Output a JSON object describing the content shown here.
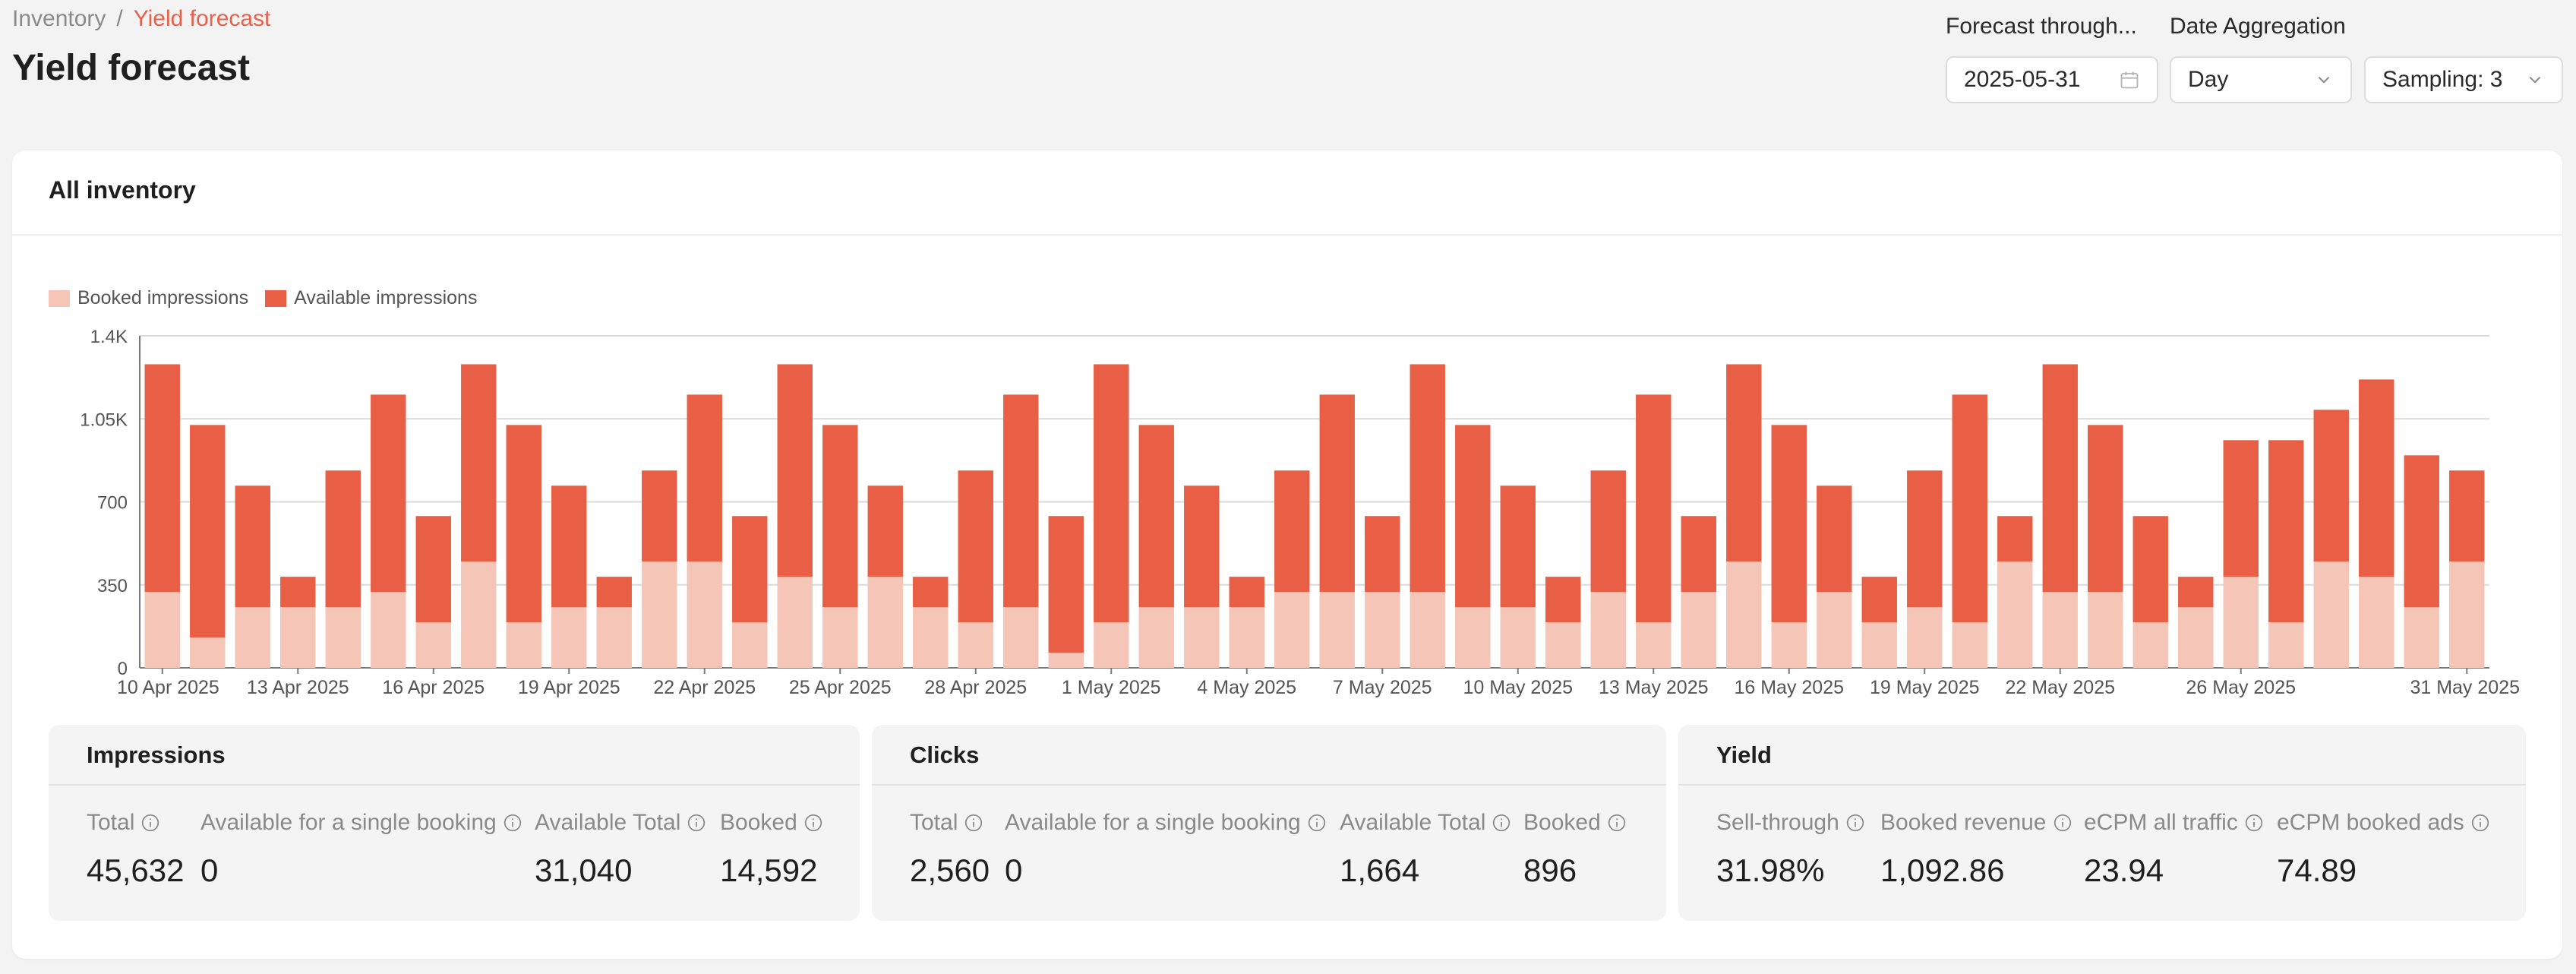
{
  "breadcrumb": {
    "parent": "Inventory",
    "separator": "/",
    "current": "Yield forecast"
  },
  "page_title": "Yield forecast",
  "controls": {
    "forecast_label": "Forecast through...",
    "forecast_value": "2025-05-31",
    "aggregation_label": "Date Aggregation",
    "aggregation_value": "Day",
    "sampling_value": "Sampling: 3"
  },
  "card": {
    "title": "All inventory"
  },
  "legend": {
    "booked": "Booked impressions",
    "available": "Available impressions"
  },
  "colors": {
    "booked": "#f5c6b7",
    "available": "#e95f45",
    "accent": "#e8604a"
  },
  "chart_data": {
    "type": "bar",
    "stacked": true,
    "ylim": [
      0,
      1400
    ],
    "yticks": [
      "0",
      "350",
      "700",
      "1.05K",
      "1.4K"
    ],
    "xticks": [
      "10 Apr 2025",
      "13 Apr 2025",
      "16 Apr 2025",
      "19 Apr 2025",
      "22 Apr 2025",
      "25 Apr 2025",
      "28 Apr 2025",
      "1 May 2025",
      "4 May 2025",
      "7 May 2025",
      "10 May 2025",
      "13 May 2025",
      "16 May 2025",
      "19 May 2025",
      "22 May 2025",
      "26 May 2025",
      "31 May 2025"
    ],
    "categories": [
      "10 Apr 2025",
      "11 Apr 2025",
      "12 Apr 2025",
      "13 Apr 2025",
      "14 Apr 2025",
      "15 Apr 2025",
      "16 Apr 2025",
      "17 Apr 2025",
      "18 Apr 2025",
      "19 Apr 2025",
      "20 Apr 2025",
      "21 Apr 2025",
      "22 Apr 2025",
      "23 Apr 2025",
      "24 Apr 2025",
      "25 Apr 2025",
      "26 Apr 2025",
      "27 Apr 2025",
      "28 Apr 2025",
      "29 Apr 2025",
      "30 Apr 2025",
      "1 May 2025",
      "2 May 2025",
      "3 May 2025",
      "4 May 2025",
      "5 May 2025",
      "6 May 2025",
      "7 May 2025",
      "8 May 2025",
      "9 May 2025",
      "10 May 2025",
      "11 May 2025",
      "12 May 2025",
      "13 May 2025",
      "14 May 2025",
      "15 May 2025",
      "16 May 2025",
      "17 May 2025",
      "18 May 2025",
      "19 May 2025",
      "20 May 2025",
      "21 May 2025",
      "22 May 2025",
      "23 May 2025",
      "24 May 2025",
      "25 May 2025",
      "26 May 2025",
      "27 May 2025",
      "28 May 2025",
      "29 May 2025",
      "30 May 2025",
      "31 May 2025"
    ],
    "series": [
      {
        "name": "Booked impressions",
        "values": [
          320,
          128,
          256,
          256,
          256,
          320,
          192,
          448,
          192,
          256,
          256,
          448,
          448,
          192,
          384,
          256,
          384,
          256,
          192,
          256,
          64,
          192,
          256,
          256,
          256,
          320,
          320,
          320,
          320,
          256,
          256,
          192,
          320,
          192,
          320,
          448,
          192,
          320,
          192,
          256,
          192,
          448,
          320,
          320,
          192,
          256,
          384,
          192,
          448,
          384,
          256,
          448
        ]
      },
      {
        "name": "Available impressions",
        "values": [
          960,
          896,
          512,
          128,
          576,
          832,
          448,
          832,
          832,
          512,
          128,
          384,
          704,
          448,
          896,
          768,
          384,
          128,
          640,
          896,
          576,
          1088,
          768,
          512,
          128,
          512,
          832,
          320,
          960,
          768,
          512,
          192,
          512,
          960,
          320,
          832,
          832,
          448,
          192,
          576,
          960,
          192,
          960,
          704,
          448,
          128,
          576,
          768,
          640,
          832,
          640,
          384
        ]
      }
    ]
  },
  "stats": {
    "impressions": {
      "title": "Impressions",
      "items": [
        {
          "label": "Total",
          "value": "45,632"
        },
        {
          "label": "Available for a single booking",
          "value": "0"
        },
        {
          "label": "Available Total",
          "value": "31,040"
        },
        {
          "label": "Booked",
          "value": "14,592"
        }
      ]
    },
    "clicks": {
      "title": "Clicks",
      "items": [
        {
          "label": "Total",
          "value": "2,560"
        },
        {
          "label": "Available for a single booking",
          "value": "0"
        },
        {
          "label": "Available Total",
          "value": "1,664"
        },
        {
          "label": "Booked",
          "value": "896"
        }
      ]
    },
    "yield": {
      "title": "Yield",
      "items": [
        {
          "label": "Sell-through",
          "value": "31.98%"
        },
        {
          "label": "Booked revenue",
          "value": "1,092.86"
        },
        {
          "label": "eCPM all traffic",
          "value": "23.94"
        },
        {
          "label": "eCPM booked ads",
          "value": "74.89"
        }
      ]
    }
  }
}
